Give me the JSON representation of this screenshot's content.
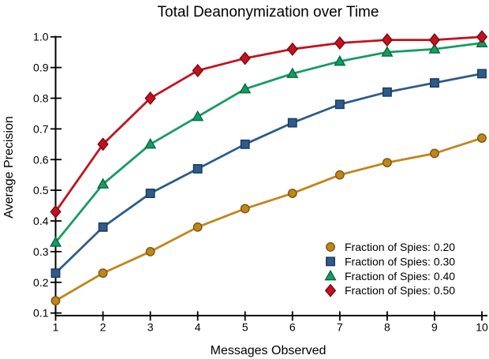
{
  "chart_data": {
    "type": "line",
    "title": "Total Deanonymization over Time",
    "xlabel": "Messages Observed",
    "ylabel": "Average Precision",
    "x": [
      1,
      2,
      3,
      4,
      5,
      6,
      7,
      8,
      9,
      10
    ],
    "xlim": [
      1,
      10
    ],
    "ylim": [
      0.1,
      1.0
    ],
    "grid": false,
    "legend_position": "lower right",
    "xtick_labels": [
      "1",
      "2",
      "3",
      "4",
      "5",
      "6",
      "7",
      "8",
      "9",
      "10"
    ],
    "ytick_labels": [
      "0.1",
      "0.2",
      "0.3",
      "0.4",
      "0.5",
      "0.6",
      "0.7",
      "0.8",
      "0.9",
      "1.0"
    ],
    "series": [
      {
        "name": "Fraction of Spies: 0.20",
        "marker": "circle",
        "color": "#BF861B",
        "edge_color": "#82590F",
        "values": [
          0.14,
          0.23,
          0.3,
          0.38,
          0.44,
          0.49,
          0.55,
          0.59,
          0.62,
          0.67
        ]
      },
      {
        "name": "Fraction of Spies: 0.30",
        "marker": "square",
        "color": "#2E5C8A",
        "edge_color": "#1D3C5C",
        "values": [
          0.23,
          0.38,
          0.49,
          0.57,
          0.65,
          0.72,
          0.78,
          0.82,
          0.85,
          0.88
        ]
      },
      {
        "name": "Fraction of Spies: 0.40",
        "marker": "triangle",
        "color": "#169C63",
        "edge_color": "#0C6B43",
        "values": [
          0.33,
          0.52,
          0.65,
          0.74,
          0.83,
          0.88,
          0.92,
          0.95,
          0.96,
          0.98
        ]
      },
      {
        "name": "Fraction of Spies: 0.50",
        "marker": "diamond",
        "color": "#C3121F",
        "edge_color": "#7E0B14",
        "values": [
          0.43,
          0.65,
          0.8,
          0.89,
          0.93,
          0.96,
          0.98,
          0.99,
          0.99,
          1.0
        ]
      }
    ],
    "axis_color": "#000000",
    "background_color": "#ffffff"
  }
}
